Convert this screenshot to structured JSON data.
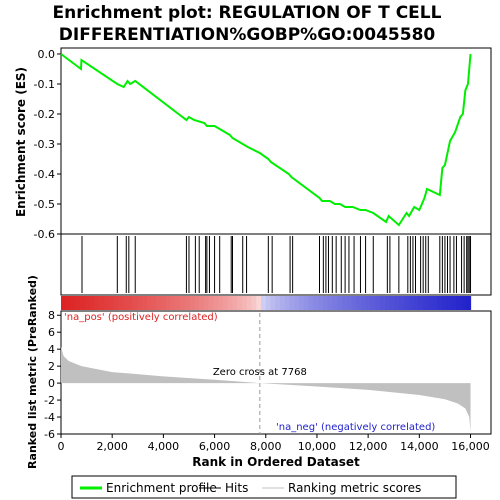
{
  "chart_data": {
    "type": "line",
    "title_line1": "Enrichment plot: REGULATION OF T CELL",
    "title_line2": "DIFFERENTIATION%GOBP%GO:0045580",
    "xlabel": "Rank in Ordered Dataset",
    "ylabel_top": "Enrichment score (ES)",
    "ylabel_bottom": "Ranked list metric (PreRanked)",
    "x_ticks": [
      0,
      2000,
      4000,
      6000,
      8000,
      10000,
      12000,
      14000,
      16000
    ],
    "x_tick_labels": [
      "0",
      "2,000",
      "4,000",
      "6,000",
      "8,000",
      "10,000",
      "12,000",
      "14,000",
      "16,000"
    ],
    "es_ticks": [
      0.0,
      -0.1,
      -0.2,
      -0.3,
      -0.4,
      -0.5,
      -0.6
    ],
    "es_tick_labels": [
      "0.0",
      "-0.1",
      "-0.2",
      "-0.3",
      "-0.4",
      "-0.5",
      "-0.6"
    ],
    "metric_ticks": [
      8,
      6,
      4,
      2,
      0,
      -2,
      -4,
      -6
    ],
    "metric_tick_labels": [
      "8",
      "6",
      "4",
      "2",
      "0",
      "-2",
      "-4",
      "-6"
    ],
    "xlim": [
      0,
      16800
    ],
    "es_ylim": [
      -0.6,
      0.02
    ],
    "metric_ylim": [
      -6,
      8.5
    ],
    "series": [
      {
        "name": "Enrichment profile",
        "color": "#00ee00",
        "x": [
          0,
          780,
          800,
          2200,
          2450,
          2600,
          2700,
          2900,
          4900,
          5000,
          5200,
          5600,
          5700,
          6000,
          6200,
          6600,
          6700,
          7100,
          7300,
          7768,
          8100,
          8200,
          8900,
          9000,
          10100,
          10200,
          10300,
          10400,
          10500,
          10700,
          10900,
          11100,
          11200,
          11400,
          11700,
          11900,
          12200,
          12700,
          12800,
          13200,
          13500,
          13600,
          13800,
          14000,
          14100,
          14200,
          14300,
          14800,
          14900,
          15000,
          15100,
          15200,
          15400,
          15600,
          15700,
          15800,
          15900,
          15950,
          16000
        ],
        "values": [
          0.0,
          -0.05,
          -0.02,
          -0.1,
          -0.11,
          -0.09,
          -0.1,
          -0.09,
          -0.22,
          -0.21,
          -0.22,
          -0.23,
          -0.24,
          -0.24,
          -0.25,
          -0.27,
          -0.28,
          -0.3,
          -0.31,
          -0.33,
          -0.35,
          -0.36,
          -0.4,
          -0.41,
          -0.48,
          -0.49,
          -0.49,
          -0.49,
          -0.49,
          -0.5,
          -0.5,
          -0.51,
          -0.51,
          -0.51,
          -0.52,
          -0.52,
          -0.53,
          -0.56,
          -0.54,
          -0.57,
          -0.53,
          -0.54,
          -0.51,
          -0.52,
          -0.5,
          -0.48,
          -0.45,
          -0.47,
          -0.38,
          -0.37,
          -0.33,
          -0.29,
          -0.26,
          -0.21,
          -0.2,
          -0.12,
          -0.1,
          -0.05,
          0.0
        ]
      }
    ],
    "hits": [
      820,
      2200,
      2550,
      2650,
      2900,
      4900,
      5000,
      5250,
      5400,
      5650,
      5700,
      5800,
      6000,
      6200,
      6650,
      6700,
      7100,
      7250,
      8100,
      8250,
      8950,
      9050,
      10100,
      10250,
      10350,
      10450,
      10600,
      10750,
      10950,
      11100,
      11250,
      11450,
      11700,
      11900,
      12200,
      12750,
      12850,
      13200,
      13550,
      13650,
      13750,
      13850,
      14050,
      14150,
      14250,
      14350,
      14800,
      14900,
      15000,
      15100,
      15200,
      15350,
      15450,
      15650,
      15750,
      15850,
      15900,
      15950,
      16000
    ],
    "ranked_metric": {
      "name": "Ranking metric scores",
      "color": "#c0c0c0",
      "x": [
        0,
        100,
        300,
        800,
        2000,
        4000,
        6000,
        7768,
        10000,
        12000,
        14000,
        15000,
        15500,
        15800,
        15950,
        16000
      ],
      "values": [
        4.3,
        3.2,
        2.6,
        2.0,
        1.3,
        0.8,
        0.4,
        0.0,
        -0.4,
        -0.8,
        -1.4,
        -1.9,
        -2.4,
        -3.0,
        -4.0,
        -5.8
      ]
    },
    "zero_cross_label": "Zero cross at 7768",
    "zero_cross_x": 7768,
    "pos_label": "'na_pos' (positively correlated)",
    "neg_label": "'na_neg' (negatively correlated)",
    "pos_color": "#dd2222",
    "neg_color": "#2222cc",
    "legend": [
      {
        "label": "Enrichment profile",
        "color": "#00ee00"
      },
      {
        "label": "Hits",
        "color": "#000000"
      },
      {
        "label": "Ranking metric scores",
        "color": "#c0c0c0"
      }
    ],
    "legend_position": "bottom"
  }
}
